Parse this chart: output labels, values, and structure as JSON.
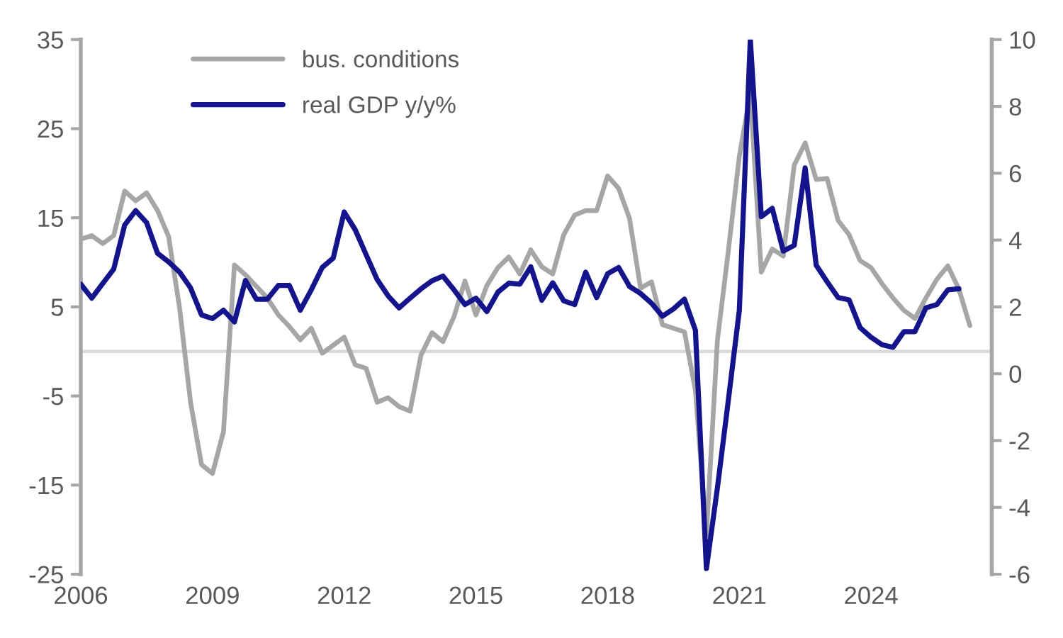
{
  "chart_data": {
    "type": "line",
    "xlim": [
      2006,
      2026.75
    ],
    "xticks": [
      2006,
      2009,
      2012,
      2015,
      2018,
      2021,
      2024
    ],
    "ylim": [
      -25,
      35
    ],
    "yticks": [
      -25,
      -15,
      -5,
      5,
      15,
      25,
      35
    ],
    "y2lim": [
      -6,
      10
    ],
    "y2ticks": [
      -6,
      -4,
      -2,
      0,
      2,
      4,
      6,
      8,
      10
    ],
    "grid": false,
    "legend": "top left",
    "marker": "none",
    "line_style": "solid",
    "ref_lines": [
      {
        "axis": "y",
        "value": 0,
        "color": "#d9d9d9"
      }
    ],
    "series": [
      {
        "name": "bus. conditions",
        "color": "#a6a6a6",
        "x": [
          2006.0,
          2006.25,
          2006.5,
          2006.75,
          2007.0,
          2007.25,
          2007.5,
          2007.75,
          2008.0,
          2008.25,
          2008.5,
          2008.75,
          2009.0,
          2009.25,
          2009.5,
          2009.75,
          2010.0,
          2010.25,
          2010.5,
          2010.75,
          2011.0,
          2011.25,
          2011.5,
          2011.75,
          2012.0,
          2012.25,
          2012.5,
          2012.75,
          2013.0,
          2013.25,
          2013.5,
          2013.75,
          2014.0,
          2014.25,
          2014.5,
          2014.75,
          2015.0,
          2015.25,
          2015.5,
          2015.75,
          2016.0,
          2016.25,
          2016.5,
          2016.75,
          2017.0,
          2017.25,
          2017.5,
          2017.75,
          2018.0,
          2018.25,
          2018.5,
          2018.75,
          2019.0,
          2019.25,
          2019.5,
          2019.75,
          2020.0,
          2020.25,
          2020.5,
          2020.75,
          2021.0,
          2021.25,
          2021.5,
          2021.75,
          2022.0,
          2022.25,
          2022.5,
          2022.75,
          2023.0,
          2023.25,
          2023.5,
          2023.75,
          2024.0,
          2024.25,
          2024.5,
          2024.75,
          2025.0,
          2025.25,
          2025.5,
          2025.75,
          2026.0,
          2026.25
        ],
        "values": [
          12.6,
          13.0,
          12.1,
          13.0,
          18.0,
          16.9,
          17.8,
          15.8,
          12.9,
          4.9,
          -5.7,
          -12.7,
          -13.7,
          -9.0,
          9.7,
          8.6,
          7.3,
          6.0,
          4.1,
          2.8,
          1.3,
          2.6,
          -0.2,
          0.7,
          1.6,
          -1.5,
          -1.9,
          -5.7,
          -5.2,
          -6.2,
          -6.7,
          -0.4,
          2.1,
          1.1,
          3.9,
          7.9,
          4.1,
          7.4,
          9.4,
          10.6,
          8.7,
          11.4,
          9.5,
          8.7,
          13.1,
          15.3,
          15.8,
          15.8,
          19.7,
          18.3,
          14.9,
          7.1,
          7.8,
          3.0,
          2.6,
          2.2,
          -4.4,
          -20.6,
          1.2,
          11.3,
          21.9,
          29.0,
          8.9,
          11.5,
          10.7,
          20.9,
          23.4,
          19.3,
          19.4,
          14.7,
          13.1,
          10.2,
          9.4,
          7.6,
          6.0,
          4.6,
          3.7,
          6.0,
          8.1,
          9.6,
          7.0,
          2.9
        ]
      },
      {
        "name": "real GDP y/y%",
        "color": "#14148c",
        "axis": "y2",
        "x": [
          2006.0,
          2006.25,
          2006.5,
          2006.75,
          2007.0,
          2007.25,
          2007.5,
          2007.75,
          2008.0,
          2008.25,
          2008.5,
          2008.75,
          2009.0,
          2009.25,
          2009.5,
          2009.75,
          2010.0,
          2010.25,
          2010.5,
          2010.75,
          2011.0,
          2011.25,
          2011.5,
          2011.75,
          2012.0,
          2012.25,
          2012.5,
          2012.75,
          2013.0,
          2013.25,
          2013.5,
          2013.75,
          2014.0,
          2014.25,
          2014.5,
          2014.75,
          2015.0,
          2015.25,
          2015.5,
          2015.75,
          2016.0,
          2016.25,
          2016.5,
          2016.75,
          2017.0,
          2017.25,
          2017.5,
          2017.75,
          2018.0,
          2018.25,
          2018.5,
          2018.75,
          2019.0,
          2019.25,
          2019.5,
          2019.75,
          2020.0,
          2020.25,
          2020.5,
          2020.75,
          2021.0,
          2021.25,
          2021.5,
          2021.75,
          2022.0,
          2022.25,
          2022.5,
          2022.75,
          2023.0,
          2023.25,
          2023.5,
          2023.75,
          2024.0,
          2024.25,
          2024.5,
          2024.75,
          2025.0,
          2025.25,
          2025.5,
          2025.75,
          2026.0
        ],
        "values": [
          2.68,
          2.26,
          2.7,
          3.13,
          4.45,
          4.88,
          4.52,
          3.6,
          3.35,
          3.04,
          2.57,
          1.76,
          1.65,
          1.9,
          1.55,
          2.79,
          2.23,
          2.23,
          2.64,
          2.64,
          1.9,
          2.51,
          3.18,
          3.46,
          4.84,
          4.31,
          3.56,
          2.82,
          2.33,
          1.97,
          2.26,
          2.54,
          2.78,
          2.92,
          2.51,
          2.07,
          2.26,
          1.86,
          2.44,
          2.71,
          2.68,
          3.2,
          2.2,
          2.72,
          2.18,
          2.07,
          3.04,
          2.28,
          2.99,
          3.18,
          2.61,
          2.4,
          2.11,
          1.72,
          1.94,
          2.23,
          1.3,
          -5.83,
          -3.42,
          -0.79,
          1.9,
          10.0,
          4.7,
          4.95,
          3.67,
          3.84,
          6.16,
          3.25,
          2.75,
          2.28,
          2.21,
          1.38,
          1.09,
          0.87,
          0.79,
          1.26,
          1.26,
          1.97,
          2.07,
          2.51,
          2.54
        ]
      }
    ]
  }
}
